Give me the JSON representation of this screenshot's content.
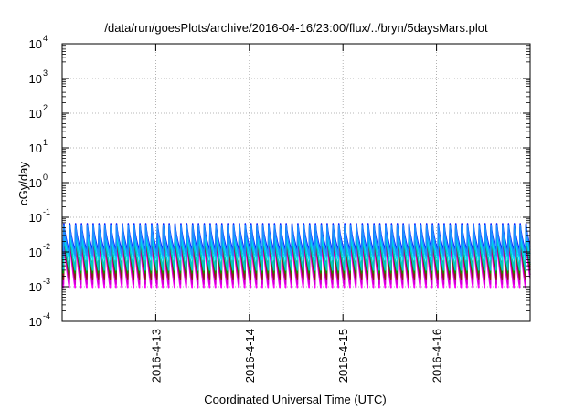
{
  "chart_data": {
    "type": "line",
    "title": "/data/run/goesPlots/archive/2016-04-16/23:00/flux/../bryn/5daysMars.plot",
    "xlabel": "Coordinated Universal Time (UTC)",
    "ylabel": "cGy/day",
    "y_scale": "log",
    "ylim": [
      0.0001,
      10000
    ],
    "y_ticks": [
      {
        "base": "10",
        "exp": "-4"
      },
      {
        "base": "10",
        "exp": "-3"
      },
      {
        "base": "10",
        "exp": "-2"
      },
      {
        "base": "10",
        "exp": "-1"
      },
      {
        "base": "10",
        "exp": "0"
      },
      {
        "base": "10",
        "exp": "1"
      },
      {
        "base": "10",
        "exp": "2"
      },
      {
        "base": "10",
        "exp": "3"
      },
      {
        "base": "10",
        "exp": "4"
      }
    ],
    "xlim": [
      "2016-04-12 00:00",
      "2016-04-17 00:00"
    ],
    "x_ticks": [
      "2016-4-13",
      "2016-4-14",
      "2016-4-15",
      "2016-4-16"
    ],
    "grid": true,
    "legend": "none",
    "series_pattern": {
      "description_period_hours": 1.5,
      "count_note": "about 80 sawtooth teeth over 5 days"
    },
    "series": [
      {
        "color": "#ff00ff",
        "values_peak_trough": [
          0.03,
          0.0009
        ]
      },
      {
        "color": "#cc00cc",
        "values_peak_trough": [
          0.035,
          0.0012
        ]
      },
      {
        "color": "#ff0000",
        "values_peak_trough": [
          0.055,
          0.002
        ]
      },
      {
        "color": "#8a1a1a",
        "values_peak_trough": [
          0.05,
          0.0016
        ]
      },
      {
        "color": "#00a000",
        "values_peak_trough": [
          0.045,
          0.0025
        ]
      },
      {
        "color": "#00c8c8",
        "values_peak_trough": [
          0.04,
          0.003
        ]
      },
      {
        "color": "#00e0ff",
        "values_peak_trough": [
          0.05,
          0.006
        ]
      },
      {
        "color": "#0000ff",
        "values_peak_trough": [
          0.065,
          0.01
        ]
      },
      {
        "color": "#1e90ff",
        "values_peak_trough": [
          0.06,
          0.008
        ]
      }
    ]
  }
}
